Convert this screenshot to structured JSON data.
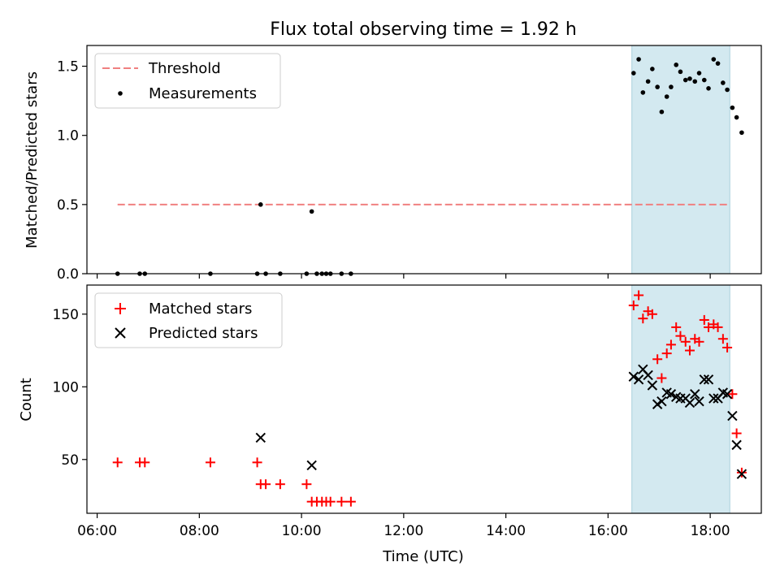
{
  "chart_data": [
    {
      "type": "scatter",
      "title": "Flux total observing time = 1.92 h",
      "ylabel": "Matched/Predicted stars",
      "xlabel": "",
      "xlim": [
        "05:48",
        "19:00"
      ],
      "ylim": [
        0,
        1.65
      ],
      "yticks": [
        "0.0",
        "0.5",
        "1.0",
        "1.5"
      ],
      "shaded_interval": [
        "16:28",
        "18:23"
      ],
      "shade_color": "#d3e9f0",
      "grid": false,
      "legend_position": "top-left",
      "legend": [
        "Threshold",
        "Measurements"
      ],
      "threshold": {
        "name": "Threshold",
        "value": 0.5,
        "x_range": [
          "06:24",
          "18:23"
        ],
        "color": "#f08080"
      },
      "series": [
        {
          "name": "Measurements",
          "color": "#000000",
          "points": [
            [
              "06:24",
              0.0
            ],
            [
              "06:50",
              0.0
            ],
            [
              "06:56",
              0.0
            ],
            [
              "08:13",
              0.0
            ],
            [
              "09:08",
              0.0
            ],
            [
              "09:12",
              0.5
            ],
            [
              "09:18",
              0.0
            ],
            [
              "09:35",
              0.0
            ],
            [
              "10:06",
              0.0
            ],
            [
              "10:12",
              0.45
            ],
            [
              "10:18",
              0.0
            ],
            [
              "10:24",
              0.0
            ],
            [
              "10:29",
              0.0
            ],
            [
              "10:34",
              0.0
            ],
            [
              "10:47",
              0.0
            ],
            [
              "10:58",
              0.0
            ],
            [
              "16:30",
              1.45
            ],
            [
              "16:36",
              1.55
            ],
            [
              "16:41",
              1.31
            ],
            [
              "16:47",
              1.39
            ],
            [
              "16:52",
              1.48
            ],
            [
              "16:58",
              1.35
            ],
            [
              "17:03",
              1.17
            ],
            [
              "17:09",
              1.28
            ],
            [
              "17:14",
              1.35
            ],
            [
              "17:20",
              1.51
            ],
            [
              "17:25",
              1.46
            ],
            [
              "17:31",
              1.4
            ],
            [
              "17:36",
              1.41
            ],
            [
              "17:42",
              1.39
            ],
            [
              "17:47",
              1.45
            ],
            [
              "17:53",
              1.4
            ],
            [
              "17:58",
              1.34
            ],
            [
              "18:04",
              1.55
            ],
            [
              "18:09",
              1.52
            ],
            [
              "18:15",
              1.38
            ],
            [
              "18:20",
              1.33
            ],
            [
              "18:26",
              1.2
            ],
            [
              "18:31",
              1.13
            ],
            [
              "18:37",
              1.02
            ]
          ]
        }
      ]
    },
    {
      "type": "scatter",
      "title": "",
      "ylabel": "Count",
      "xlabel": "Time (UTC)",
      "xlim": [
        "05:48",
        "19:00"
      ],
      "ylim": [
        13,
        170
      ],
      "yticks": [
        "50",
        "100",
        "150"
      ],
      "xticks": [
        "06:00",
        "08:00",
        "10:00",
        "12:00",
        "14:00",
        "16:00",
        "18:00"
      ],
      "shaded_interval": [
        "16:28",
        "18:23"
      ],
      "shade_color": "#d3e9f0",
      "grid": false,
      "legend_position": "top-left",
      "legend": [
        "Matched stars",
        "Predicted stars"
      ],
      "series": [
        {
          "name": "Matched stars",
          "marker": "plus",
          "color": "#ff0000",
          "points": [
            [
              "06:24",
              48
            ],
            [
              "06:50",
              48
            ],
            [
              "06:56",
              48
            ],
            [
              "08:13",
              48
            ],
            [
              "09:08",
              48
            ],
            [
              "09:12",
              33
            ],
            [
              "09:18",
              33
            ],
            [
              "09:35",
              33
            ],
            [
              "10:06",
              33
            ],
            [
              "10:12",
              21
            ],
            [
              "10:18",
              21
            ],
            [
              "10:24",
              21
            ],
            [
              "10:29",
              21
            ],
            [
              "10:34",
              21
            ],
            [
              "10:47",
              21
            ],
            [
              "10:58",
              21
            ],
            [
              "16:30",
              156
            ],
            [
              "16:36",
              163
            ],
            [
              "16:41",
              147
            ],
            [
              "16:47",
              152
            ],
            [
              "16:52",
              150
            ],
            [
              "16:58",
              119
            ],
            [
              "17:03",
              106
            ],
            [
              "17:09",
              123
            ],
            [
              "17:14",
              129
            ],
            [
              "17:20",
              141
            ],
            [
              "17:25",
              135
            ],
            [
              "17:31",
              131
            ],
            [
              "17:36",
              125
            ],
            [
              "17:42",
              133
            ],
            [
              "17:47",
              131
            ],
            [
              "17:53",
              146
            ],
            [
              "17:58",
              141
            ],
            [
              "18:04",
              143
            ],
            [
              "18:09",
              141
            ],
            [
              "18:15",
              133
            ],
            [
              "18:20",
              127
            ],
            [
              "18:26",
              95
            ],
            [
              "18:31",
              68
            ],
            [
              "18:37",
              41
            ]
          ]
        },
        {
          "name": "Predicted stars",
          "marker": "cross",
          "color": "#000000",
          "points": [
            [
              "09:12",
              65
            ],
            [
              "10:12",
              46
            ],
            [
              "16:30",
              107
            ],
            [
              "16:36",
              105
            ],
            [
              "16:41",
              112
            ],
            [
              "16:47",
              108
            ],
            [
              "16:52",
              101
            ],
            [
              "16:58",
              88
            ],
            [
              "17:03",
              90
            ],
            [
              "17:09",
              96
            ],
            [
              "17:14",
              95
            ],
            [
              "17:20",
              93
            ],
            [
              "17:25",
              92
            ],
            [
              "17:31",
              92
            ],
            [
              "17:36",
              89
            ],
            [
              "17:42",
              95
            ],
            [
              "17:47",
              90
            ],
            [
              "17:53",
              105
            ],
            [
              "17:58",
              105
            ],
            [
              "18:04",
              92
            ],
            [
              "18:09",
              92
            ],
            [
              "18:15",
              96
            ],
            [
              "18:20",
              95
            ],
            [
              "18:26",
              80
            ],
            [
              "18:31",
              60
            ],
            [
              "18:37",
              40
            ]
          ]
        }
      ]
    }
  ]
}
